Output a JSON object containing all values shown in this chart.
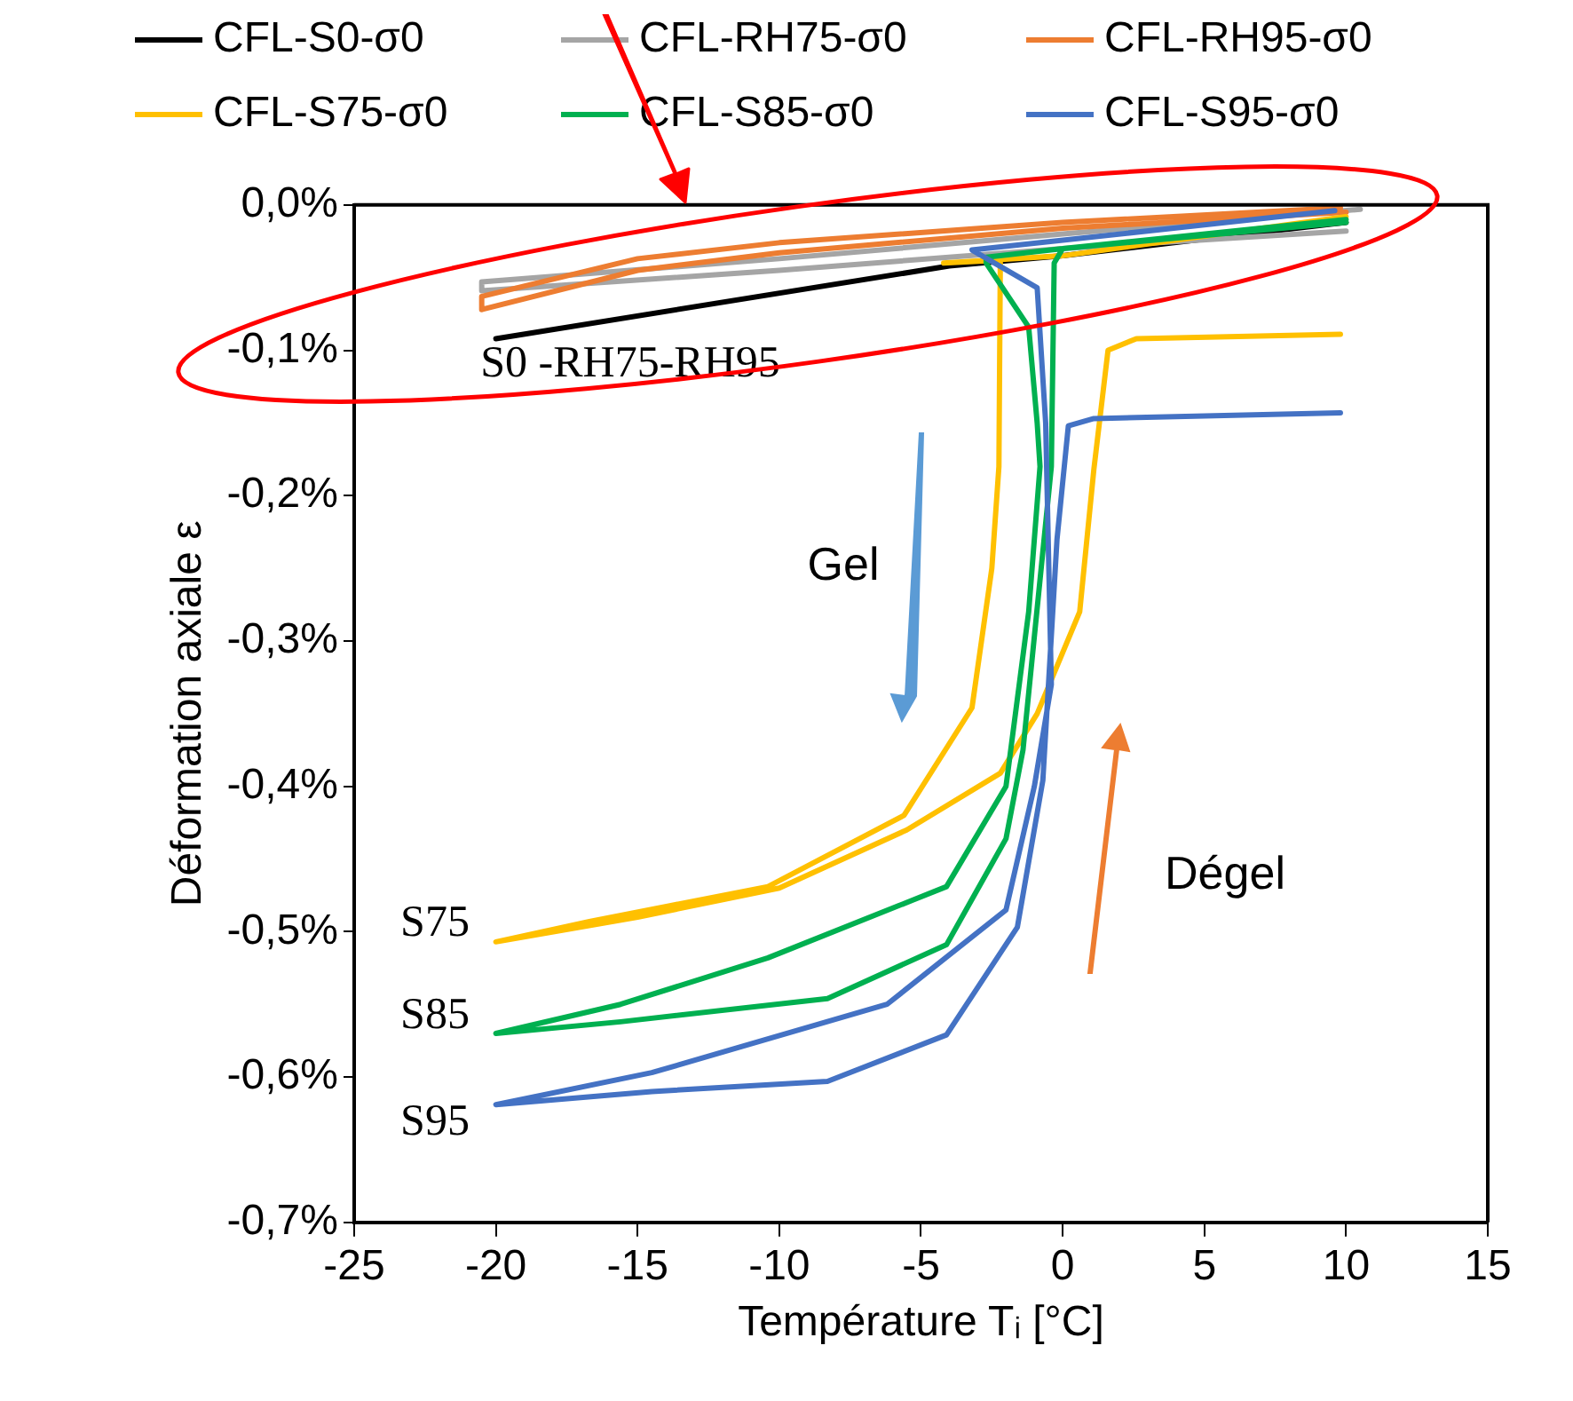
{
  "chart_data": {
    "type": "line",
    "xlabel": "Température Tᵢ [°C]",
    "ylabel": "Déformation axiale ε",
    "xlim": [
      -25,
      15
    ],
    "xticks": [
      -25,
      -20,
      -15,
      -10,
      -5,
      0,
      5,
      10,
      15
    ],
    "ylim": [
      -0.7,
      0
    ],
    "yticks": [
      {
        "value": 0,
        "label": "0,0%"
      },
      {
        "value": -0.1,
        "label": "-0,1%"
      },
      {
        "value": -0.2,
        "label": "-0,2%"
      },
      {
        "value": -0.3,
        "label": "-0,3%"
      },
      {
        "value": -0.4,
        "label": "-0,4%"
      },
      {
        "value": -0.5,
        "label": "-0,5%"
      },
      {
        "value": -0.6,
        "label": "-0,6%"
      },
      {
        "value": -0.7,
        "label": "-0,7%"
      }
    ],
    "grid": false,
    "legend": "top",
    "marker": "none",
    "line_style": "solid",
    "series": [
      {
        "name": "CFL-S0-σ0",
        "color": "#000000",
        "x": [
          -20,
          -4,
          0,
          10
        ],
        "values": [
          -0.092,
          -0.042,
          -0.035,
          -0.012
        ]
      },
      {
        "name": "CFL-RH75-σ0",
        "color": "#a5a5a5",
        "x": [
          10.5,
          0,
          -10,
          -20.5,
          -20.5,
          -10,
          0,
          10
        ],
        "values": [
          -0.003,
          -0.02,
          -0.037,
          -0.053,
          -0.059,
          -0.045,
          -0.03,
          -0.018
        ]
      },
      {
        "name": "CFL-RH95-σ0",
        "color": "#ed7d31",
        "x": [
          9.8,
          0,
          -10,
          -15,
          -20.5,
          -20.5,
          -15,
          -10,
          0,
          10
        ],
        "values": [
          -0.002,
          -0.012,
          -0.026,
          -0.037,
          -0.063,
          -0.072,
          -0.045,
          -0.033,
          -0.016,
          -0.005
        ]
      },
      {
        "name": "CFL-S75-σ0",
        "color": "#ffc000",
        "x": [
          10,
          0,
          -4.2,
          -2.2,
          -2.25,
          -2.5,
          -3.2,
          -5.6,
          -10.4,
          -16.7,
          -20,
          -15,
          -10,
          -5.5,
          -2.2,
          -0.9,
          0.6,
          1.1,
          1.6,
          2.6,
          9.8
        ],
        "values": [
          -0.008,
          -0.035,
          -0.04,
          -0.038,
          -0.18,
          -0.25,
          -0.346,
          -0.42,
          -0.469,
          -0.493,
          -0.507,
          -0.49,
          -0.47,
          -0.43,
          -0.391,
          -0.35,
          -0.28,
          -0.182,
          -0.1,
          -0.092,
          -0.089
        ]
      },
      {
        "name": "CFL-S85-σ0",
        "color": "#00b050",
        "x": [
          10,
          0,
          -2.7,
          -2.7,
          -1.2,
          -0.9,
          -0.8,
          -1.2,
          -2,
          -4.1,
          -10.4,
          -15.6,
          -20,
          -15.6,
          -8.3,
          -4.1,
          -2,
          -1.4,
          -0.4,
          -0.3,
          0,
          10
        ],
        "values": [
          -0.012,
          -0.03,
          -0.036,
          -0.04,
          -0.084,
          -0.15,
          -0.18,
          -0.28,
          -0.4,
          -0.469,
          -0.518,
          -0.55,
          -0.57,
          -0.562,
          -0.546,
          -0.509,
          -0.436,
          -0.375,
          -0.18,
          -0.04,
          -0.03,
          -0.01
        ]
      },
      {
        "name": "CFL-S95-σ0",
        "color": "#4472c4",
        "x": [
          9.6,
          -3.2,
          -0.9,
          -0.6,
          -0.4,
          -1,
          -2,
          -6.2,
          -14.5,
          -20,
          -14.5,
          -8.3,
          -4.1,
          -1.6,
          -0.7,
          -0.2,
          0.2,
          1.1,
          9.8
        ],
        "values": [
          -0.004,
          -0.031,
          -0.057,
          -0.15,
          -0.33,
          -0.4,
          -0.485,
          -0.55,
          -0.597,
          -0.619,
          -0.61,
          -0.603,
          -0.571,
          -0.497,
          -0.396,
          -0.23,
          -0.152,
          -0.147,
          -0.143
        ]
      }
    ],
    "annotations": [
      "Gel",
      "Dégel",
      "S0 -RH75-RH95",
      "S75",
      "S85",
      "S95"
    ]
  }
}
